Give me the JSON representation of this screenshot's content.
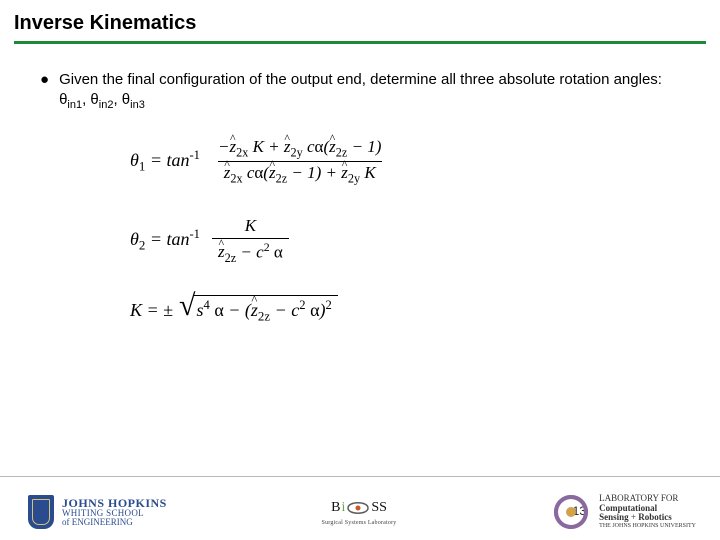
{
  "title": "Inverse Kinematics",
  "title_rule_color": "#1c8a3a",
  "bullet_marker": "●",
  "bullet_text_html": "Given the final configuration of the output end, determine all three absolute rotation angles: θ<sub>in1</sub>, θ<sub>in2</sub>, θ<sub>in3</sub>",
  "equations": {
    "eq1": {
      "lhs": "θ<sub class='sub2'>1</sub> = tan<sup>-1</sup>",
      "num": "−<span class='hat'>z</span><sub class='sub2'>2x</sub> K + <span class='hat'>z</span><sub class='sub2'>2y</sub> c<span class='upnorm'>α</span>(<span class='hat'>z</span><sub class='sub2'>2z</sub> − 1)",
      "den": "<span class='hat'>z</span><sub class='sub2'>2x</sub> c<span class='upnorm'>α</span>(<span class='hat'>z</span><sub class='sub2'>2z</sub> − 1) + <span class='hat'>z</span><sub class='sub2'>2y</sub> K"
    },
    "eq2": {
      "lhs": "θ<sub class='sub2'>2</sub> = tan<sup>-1</sup>",
      "num": "K",
      "den": "<span class='hat'>z</span><sub class='sub2'>2z</sub> − c<sup>2</sup> <span class='upnorm'>α</span>"
    },
    "eq3": {
      "lhs": "K = ±",
      "radicand": "s<sup>4</sup> <span class='upnorm'>α</span> − (<span class='hat'>z</span><sub class='sub2'>2z</sub> − c<sup>2</sup> <span class='upnorm'>α</span>)<sup>2</sup>"
    }
  },
  "page_number": "13",
  "footer": {
    "jhu_name": "JOHNS HOPKINS",
    "jhu_school": "WHITING SCHOOL",
    "jhu_eng": "of ENGINEERING",
    "center_caption": "Surgical Systems Laboratory",
    "csr_line1": "LABORATORY FOR",
    "csr_word1": "Computational",
    "csr_word2": "Sensing",
    "csr_plus": "+",
    "csr_word3": "Robotics",
    "csr_sub": "THE JOHNS HOPKINS UNIVERSITY"
  }
}
